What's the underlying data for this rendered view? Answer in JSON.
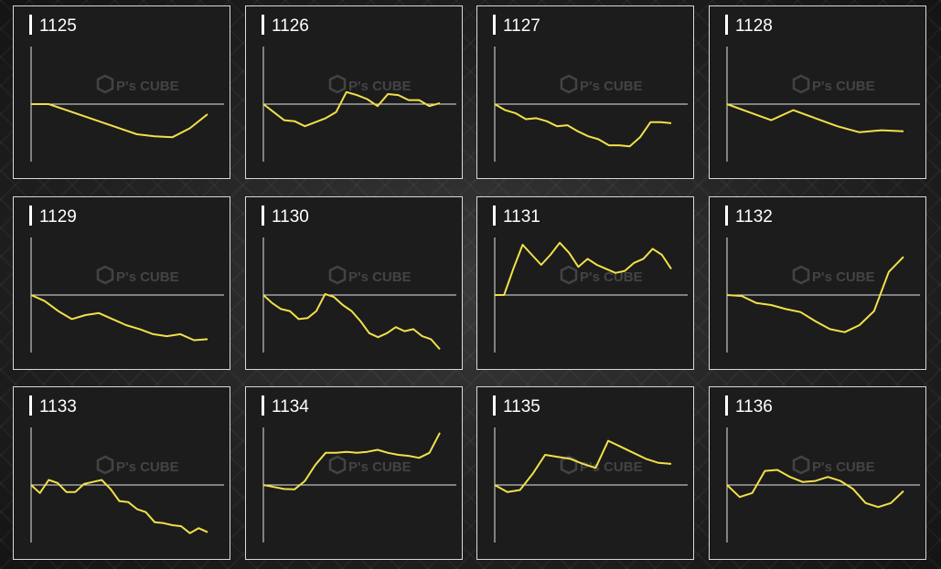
{
  "page": {
    "colors": {
      "line": "#f2e04a",
      "axis": "#e6e6e6",
      "panel_bg": "#1c1c1c",
      "panel_border": "#d8d8d8",
      "text": "#ffffff"
    },
    "watermark": {
      "brand": "P's CUBE",
      "logo_icon": "cube-icon"
    }
  },
  "chart_data": [
    {
      "type": "line",
      "title": "1125",
      "y": [
        0,
        0,
        -0.3,
        -0.6,
        -0.9,
        -1.2,
        -1.5,
        -1.6,
        -1.65,
        -1.2,
        -0.5
      ]
    },
    {
      "type": "line",
      "title": "1126",
      "y": [
        0,
        -0.4,
        -0.8,
        -0.85,
        -1.1,
        -0.9,
        -0.7,
        -0.4,
        0.6,
        0.45,
        0.25,
        -0.1,
        0.5,
        0.45,
        0.2,
        0.2,
        -0.1,
        0.05
      ]
    },
    {
      "type": "line",
      "title": "1127",
      "y": [
        0,
        -0.3,
        -0.45,
        -0.75,
        -0.7,
        -0.85,
        -1.1,
        -1.05,
        -1.35,
        -1.6,
        -1.75,
        -2.05,
        -2.05,
        -2.1,
        -1.65,
        -0.9,
        -0.9,
        -0.95
      ]
    },
    {
      "type": "line",
      "title": "1128",
      "y": [
        0,
        -0.4,
        -0.8,
        -0.3,
        -0.7,
        -1.1,
        -1.4,
        -1.3,
        -1.35
      ]
    },
    {
      "type": "line",
      "title": "1129",
      "y": [
        0,
        -0.3,
        -0.8,
        -1.2,
        -1.0,
        -0.9,
        -1.2,
        -1.5,
        -1.7,
        -1.95,
        -2.05,
        -1.95,
        -2.25,
        -2.2
      ]
    },
    {
      "type": "line",
      "title": "1130",
      "y": [
        0,
        -0.4,
        -0.7,
        -0.8,
        -1.2,
        -1.15,
        -0.8,
        0.05,
        -0.1,
        -0.5,
        -0.8,
        -1.3,
        -1.9,
        -2.1,
        -1.9,
        -1.6,
        -1.8,
        -1.7,
        -2.05,
        -2.2,
        -2.7
      ]
    },
    {
      "type": "line",
      "title": "1131",
      "y": [
        0,
        0,
        1.3,
        2.5,
        2.0,
        1.5,
        2.0,
        2.6,
        2.1,
        1.4,
        1.8,
        1.5,
        1.3,
        1.1,
        1.2,
        1.6,
        1.8,
        2.3,
        2.0,
        1.3
      ]
    },
    {
      "type": "line",
      "title": "1132",
      "y": [
        0,
        -0.05,
        -0.4,
        -0.5,
        -0.7,
        -0.85,
        -1.3,
        -1.7,
        -1.85,
        -1.5,
        -0.8,
        1.15,
        1.9
      ]
    },
    {
      "type": "line",
      "title": "1133",
      "y": [
        0,
        -0.4,
        0.25,
        0.1,
        -0.35,
        -0.35,
        0.05,
        0.15,
        0.25,
        -0.2,
        -0.8,
        -0.85,
        -1.2,
        -1.35,
        -1.85,
        -1.9,
        -2.0,
        -2.05,
        -2.4,
        -2.15,
        -2.35
      ]
    },
    {
      "type": "line",
      "title": "1134",
      "y": [
        0,
        -0.1,
        -0.2,
        -0.22,
        0.2,
        1.0,
        1.6,
        1.6,
        1.65,
        1.6,
        1.65,
        1.75,
        1.6,
        1.5,
        1.45,
        1.35,
        1.6,
        2.6
      ]
    },
    {
      "type": "line",
      "title": "1135",
      "y": [
        0,
        -0.35,
        -0.25,
        0.55,
        1.5,
        1.4,
        1.3,
        1.05,
        0.85,
        2.2,
        1.9,
        1.6,
        1.3,
        1.1,
        1.05
      ]
    },
    {
      "type": "line",
      "title": "1136",
      "y": [
        0,
        -0.6,
        -0.4,
        0.7,
        0.75,
        0.4,
        0.15,
        0.2,
        0.4,
        0.2,
        -0.2,
        -0.9,
        -1.1,
        -0.9,
        -0.3
      ]
    }
  ]
}
